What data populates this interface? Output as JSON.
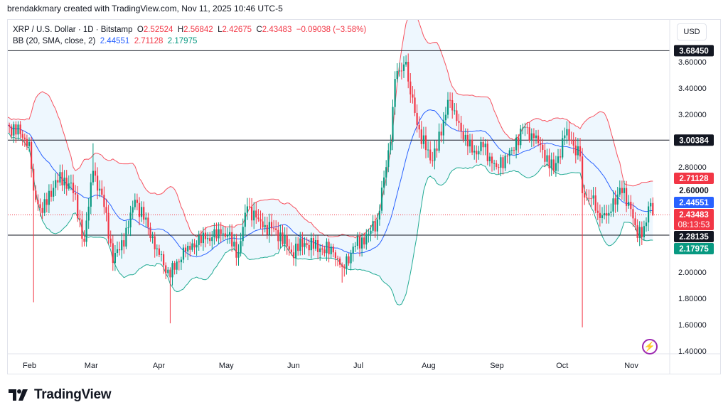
{
  "credit": "brendakkmary created with TradingView.com, Nov 11, 2025 10:46 UTC-5",
  "legend": {
    "symbol": "XRP / U.S. Dollar · 1D · Bitstamp",
    "o_label": "O",
    "o": "2.52524",
    "h_label": "H",
    "h": "2.56842",
    "l_label": "L",
    "l": "2.42675",
    "c_label": "C",
    "c": "2.43483",
    "change": "−0.09038 (−3.58%)",
    "bb_label": "BB (20, SMA, close, 2)",
    "bb_basis": "2.44551",
    "bb_upper": "2.71128",
    "bb_lower": "2.17975"
  },
  "currency_button": "USD",
  "logo_text": "TradingView",
  "chart_data": {
    "type": "candlestick",
    "title": "XRP / U.S. Dollar · 1D · Bitstamp",
    "ylim": [
      1.3,
      3.9
    ],
    "y_ticks": [
      "3.60000",
      "3.40000",
      "3.20000",
      "2.80000",
      "2.60000",
      "2.00000",
      "1.80000",
      "1.60000",
      "1.40000"
    ],
    "x_ticks": [
      {
        "label": "Feb",
        "day": 10
      },
      {
        "label": "Mar",
        "day": 38
      },
      {
        "label": "Apr",
        "day": 69
      },
      {
        "label": "May",
        "day": 99
      },
      {
        "label": "Jun",
        "day": 130
      },
      {
        "label": "Jul",
        "day": 160
      },
      {
        "label": "Aug",
        "day": 191
      },
      {
        "label": "Sep",
        "day": 222
      },
      {
        "label": "Oct",
        "day": 252
      },
      {
        "label": "Nov",
        "day": 283
      }
    ],
    "close_anchors": [
      [
        0,
        3.12
      ],
      [
        6,
        3.05
      ],
      [
        10,
        2.99
      ],
      [
        12,
        2.62
      ],
      [
        16,
        2.45
      ],
      [
        22,
        2.7
      ],
      [
        29,
        2.68
      ],
      [
        35,
        2.23
      ],
      [
        39,
        2.77
      ],
      [
        45,
        2.45
      ],
      [
        48,
        2.07
      ],
      [
        55,
        2.34
      ],
      [
        58,
        2.55
      ],
      [
        64,
        2.34
      ],
      [
        68,
        2.18
      ],
      [
        74,
        1.96
      ],
      [
        77,
        2.08
      ],
      [
        82,
        2.2
      ],
      [
        90,
        2.25
      ],
      [
        97,
        2.29
      ],
      [
        100,
        2.28
      ],
      [
        105,
        2.15
      ],
      [
        109,
        2.5
      ],
      [
        116,
        2.34
      ],
      [
        122,
        2.32
      ],
      [
        129,
        2.15
      ],
      [
        135,
        2.22
      ],
      [
        142,
        2.18
      ],
      [
        148,
        2.15
      ],
      [
        152,
        2.04
      ],
      [
        158,
        2.2
      ],
      [
        164,
        2.29
      ],
      [
        168,
        2.4
      ],
      [
        171,
        2.72
      ],
      [
        174,
        2.99
      ],
      [
        176,
        3.47
      ],
      [
        179,
        3.53
      ],
      [
        181,
        3.6
      ],
      [
        182,
        3.45
      ],
      [
        186,
        3.12
      ],
      [
        192,
        2.85
      ],
      [
        197,
        3.04
      ],
      [
        200,
        3.31
      ],
      [
        203,
        3.23
      ],
      [
        206,
        3.07
      ],
      [
        211,
        2.91
      ],
      [
        216,
        2.95
      ],
      [
        222,
        2.8
      ],
      [
        229,
        2.93
      ],
      [
        234,
        3.1
      ],
      [
        239,
        3.02
      ],
      [
        243,
        2.93
      ],
      [
        248,
        2.77
      ],
      [
        253,
        3.04
      ],
      [
        256,
        3.0
      ],
      [
        260,
        2.88
      ],
      [
        261,
        2.6
      ],
      [
        265,
        2.56
      ],
      [
        268,
        2.45
      ],
      [
        273,
        2.45
      ],
      [
        278,
        2.64
      ],
      [
        283,
        2.48
      ],
      [
        286,
        2.26
      ],
      [
        289,
        2.35
      ],
      [
        291,
        2.5
      ],
      [
        292,
        2.52524
      ],
      [
        293,
        2.43483
      ]
    ],
    "wick_overrides": [
      {
        "day": 12,
        "low": 1.77
      },
      {
        "day": 39,
        "high": 2.98
      },
      {
        "day": 74,
        "low": 1.61
      },
      {
        "day": 152,
        "low": 1.92
      },
      {
        "day": 181,
        "high": 3.65
      },
      {
        "day": 261,
        "low": 1.58
      },
      {
        "day": 293,
        "high": 2.56842,
        "low": 2.42675
      }
    ],
    "bollinger": {
      "period": 20,
      "mult": 2,
      "basis": 2.44551,
      "upper": 2.71128,
      "lower": 2.17975
    },
    "horizontal_levels": [
      {
        "value": 3.6845,
        "label": "3.68450"
      },
      {
        "value": 3.00384,
        "label": "3.00384"
      },
      {
        "value": 2.28135,
        "label": "2.28135"
      }
    ],
    "price_labels": {
      "upper": "2.71128",
      "axis_2_6": "2.60000",
      "basis": "2.44551",
      "last": "2.43483",
      "countdown": "08:13:53",
      "lower": "2.17975"
    },
    "colors": {
      "up": "#089981",
      "down": "#f23645",
      "basis": "#2962ff",
      "upper": "#f7525f",
      "lower": "#22ab94",
      "fill": "#e3f2fd",
      "level": "#131722"
    }
  }
}
